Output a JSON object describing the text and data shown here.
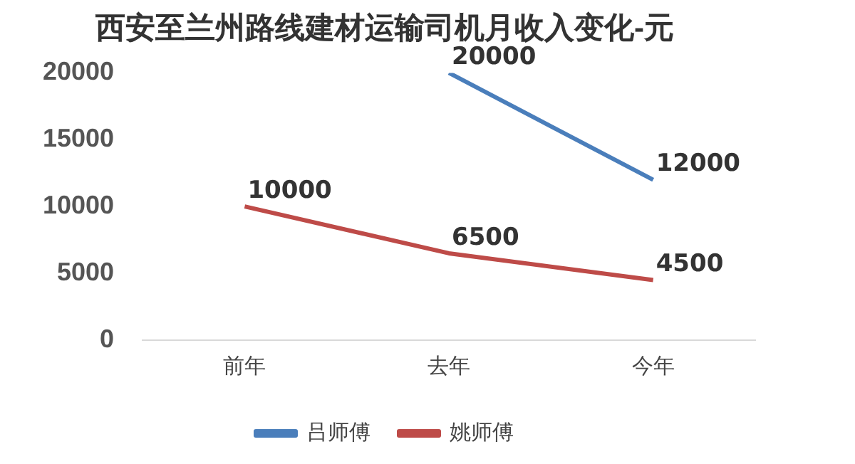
{
  "chart_data": {
    "type": "line",
    "title": "西安至兰州路线建材运输司机月收入变化-元",
    "categories": [
      "前年",
      "去年",
      "今年"
    ],
    "series": [
      {
        "name": "吕师傅",
        "color": "#4a7ebb",
        "values": [
          null,
          20000,
          12000
        ]
      },
      {
        "name": "姚师傅",
        "color": "#be4b48",
        "values": [
          10000,
          6500,
          4500
        ]
      }
    ],
    "ylim": [
      0,
      20000
    ],
    "yticks": [
      0,
      5000,
      10000,
      15000,
      20000
    ],
    "grid": false,
    "legend": "bottom",
    "data_labels": true,
    "marker": "none",
    "line_style": "solid"
  }
}
